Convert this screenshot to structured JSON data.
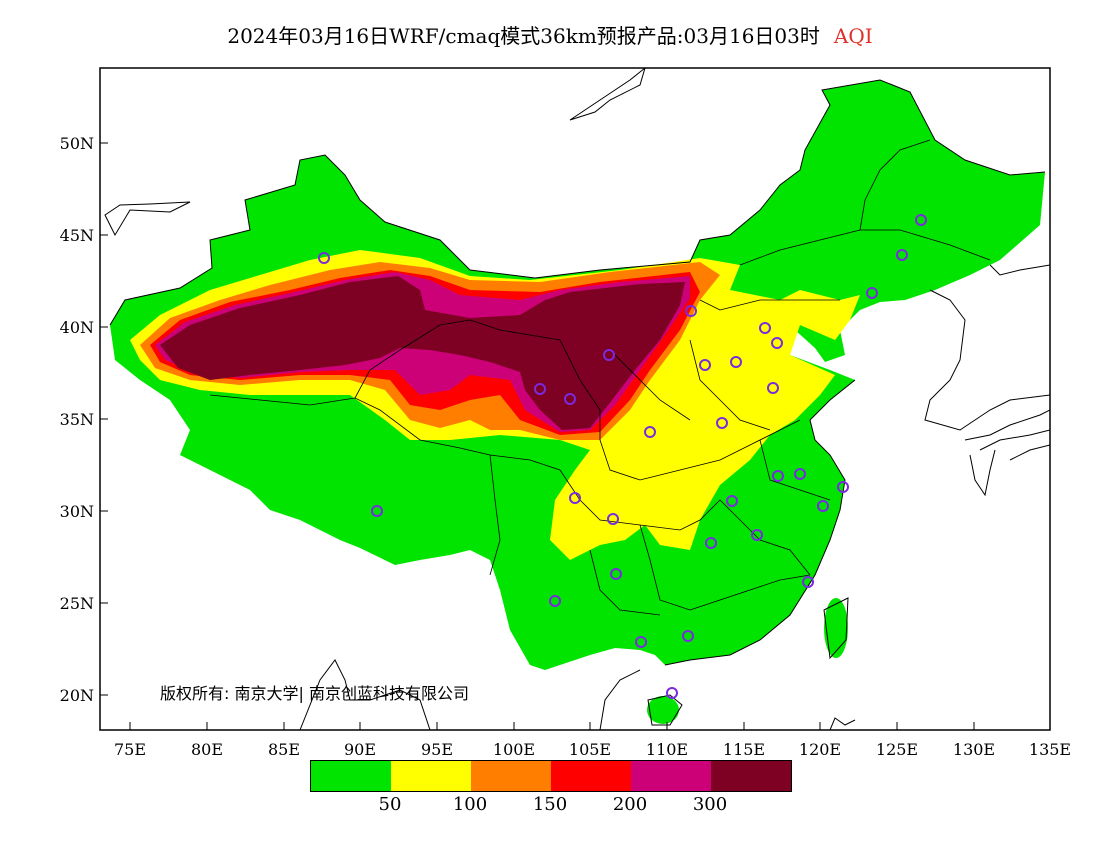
{
  "title": "2024年03月16日WRF/cmaq模式36km预报产品:03月16日03时",
  "variable": "AQI",
  "lat_labels": [
    "50N",
    "45N",
    "40N",
    "35N",
    "30N",
    "25N",
    "20N"
  ],
  "lon_labels": [
    "75E",
    "80E",
    "85E",
    "90E",
    "95E",
    "100E",
    "105E",
    "110E",
    "115E",
    "120E",
    "125E",
    "130E",
    "135E"
  ],
  "copyright": "版权所有: 南京大学| 南京创蓝科技有限公司",
  "legend": {
    "colors": [
      "#00e400",
      "#ffff00",
      "#ff7e00",
      "#ff0000",
      "#cc0077",
      "#7e0023"
    ],
    "labels": [
      "50",
      "100",
      "150",
      "200",
      "300"
    ],
    "categories": [
      "0-50",
      "50-100",
      "100-150",
      "150-200",
      "200-300",
      ">300"
    ]
  },
  "colors": {
    "title_var": "#e0302a",
    "station_marker": "#7a2be0"
  }
}
